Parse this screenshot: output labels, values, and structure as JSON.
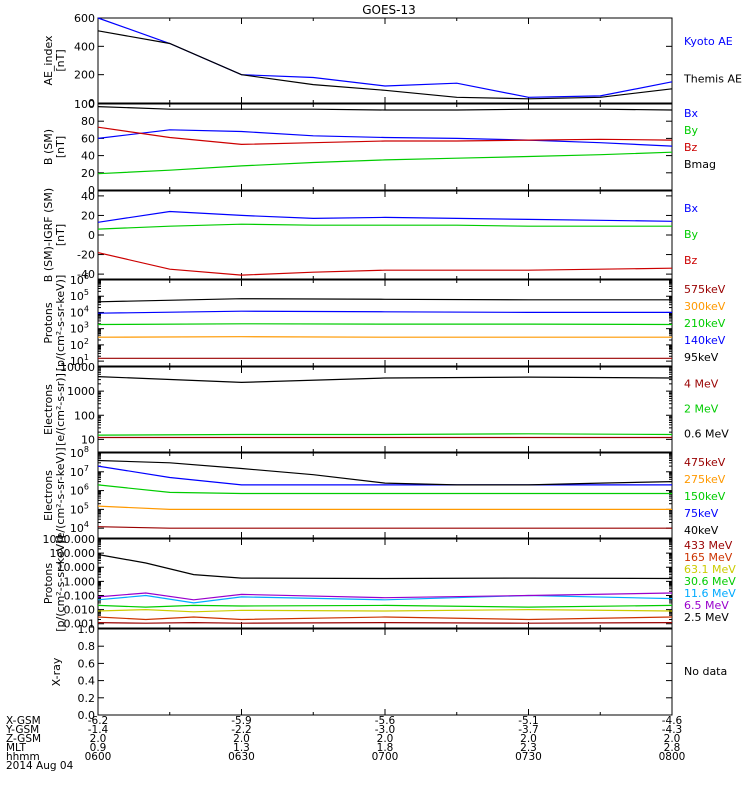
{
  "title": "GOES-13",
  "colors": {
    "black": "#000000",
    "blue": "#0000ff",
    "green": "#00cc00",
    "red": "#cc0000",
    "darkred": "#990000",
    "orange": "#ff9900",
    "cyan": "#00aaff",
    "yellow": "#cccc00",
    "purple": "#9900cc",
    "brown": "#cc3300"
  },
  "footer": {
    "rows": [
      {
        "label": "X-GSM",
        "values": [
          "-6.2",
          "-5.9",
          "-5.6",
          "-5.1",
          "-4.6"
        ]
      },
      {
        "label": "Y-GSM",
        "values": [
          "-1.4",
          "-2.2",
          "-3.0",
          "-3.7",
          "-4.3"
        ]
      },
      {
        "label": "Z-GSM",
        "values": [
          "2.0",
          "2.0",
          "2.0",
          "2.0",
          "2.0"
        ]
      },
      {
        "label": "MLT",
        "values": [
          "0.9",
          "1.3",
          "1.8",
          "2.3",
          "2.8"
        ]
      },
      {
        "label": "hhmm",
        "values": [
          "0600",
          "0630",
          "0700",
          "0730",
          "0800"
        ]
      }
    ],
    "date": "2014 Aug 04"
  },
  "chart_data": [
    {
      "type": "line",
      "id": "ae",
      "ylabel": [
        "AE_index",
        "[nT]"
      ],
      "ylim": [
        0,
        600
      ],
      "log": false,
      "ticks": [
        "0",
        "200",
        "400",
        "600"
      ],
      "legend": [
        {
          "name": "Kyoto AE",
          "color": "blue"
        },
        {
          "name": "Themis AE",
          "color": "black"
        }
      ],
      "x": [
        "0600",
        "0615",
        "0630",
        "0645",
        "0700",
        "0715",
        "0730",
        "0745",
        "0800"
      ],
      "series": [
        {
          "name": "Kyoto AE",
          "color": "blue",
          "values": [
            620,
            420,
            200,
            180,
            120,
            140,
            40,
            50,
            150
          ]
        },
        {
          "name": "Themis AE",
          "color": "black",
          "values": [
            510,
            420,
            200,
            130,
            90,
            40,
            30,
            40,
            100
          ]
        }
      ]
    },
    {
      "type": "line",
      "id": "bsm",
      "ylabel": [
        "B (SM)",
        "[nT]"
      ],
      "ylim": [
        0,
        100
      ],
      "log": false,
      "ticks": [
        "0",
        "20",
        "40",
        "60",
        "80",
        "100"
      ],
      "legend": [
        {
          "name": "Bx",
          "color": "blue"
        },
        {
          "name": "By",
          "color": "green"
        },
        {
          "name": "Bz",
          "color": "red"
        },
        {
          "name": "Bmag",
          "color": "black"
        }
      ],
      "x": [
        "0600",
        "0615",
        "0630",
        "0645",
        "0700",
        "0715",
        "0730",
        "0745",
        "0800"
      ],
      "series": [
        {
          "name": "Bx",
          "color": "blue",
          "values": [
            60,
            70,
            68,
            63,
            61,
            60,
            58,
            55,
            51
          ]
        },
        {
          "name": "By",
          "color": "green",
          "values": [
            19,
            23,
            28,
            32,
            35,
            37,
            39,
            41,
            44
          ]
        },
        {
          "name": "Bz",
          "color": "red",
          "values": [
            73,
            61,
            53,
            55,
            57,
            57,
            58,
            59,
            58
          ]
        },
        {
          "name": "Bmag",
          "color": "black",
          "values": [
            97,
            94,
            94,
            94,
            93,
            93,
            94,
            94,
            93
          ]
        }
      ]
    },
    {
      "type": "line",
      "id": "bigrf",
      "ylabel": [
        "B (SM)-IGRF (SM)",
        "[nT]"
      ],
      "ylim": [
        -45,
        45
      ],
      "log": false,
      "ticks": [
        "-40",
        "-20",
        "0",
        "20",
        "40"
      ],
      "legend": [
        {
          "name": "Bx",
          "color": "blue"
        },
        {
          "name": "By",
          "color": "green"
        },
        {
          "name": "Bz",
          "color": "red"
        }
      ],
      "x": [
        "0600",
        "0615",
        "0630",
        "0645",
        "0700",
        "0715",
        "0730",
        "0745",
        "0800"
      ],
      "series": [
        {
          "name": "Bx",
          "color": "blue",
          "values": [
            13,
            24,
            20,
            17,
            18,
            17,
            16,
            15,
            14
          ]
        },
        {
          "name": "By",
          "color": "green",
          "values": [
            6,
            9,
            11,
            10,
            10,
            10,
            9,
            9,
            9
          ]
        },
        {
          "name": "Bz",
          "color": "red",
          "values": [
            -18,
            -35,
            -41,
            -38,
            -36,
            -36,
            -36,
            -35,
            -34
          ]
        }
      ]
    },
    {
      "type": "line",
      "id": "protons",
      "ylabel": [
        "Protons",
        "[p/(cm²-s-sr-keV)]"
      ],
      "ylim": [
        5,
        1000000
      ],
      "log": true,
      "ticks": [
        {
          "t": "10",
          "v": 10,
          "e": "1"
        },
        {
          "t": "10",
          "v": 100,
          "e": "2"
        },
        {
          "t": "10",
          "v": 1000,
          "e": "3"
        },
        {
          "t": "10",
          "v": 10000,
          "e": "4"
        },
        {
          "t": "10",
          "v": 100000,
          "e": "5"
        },
        {
          "t": "10",
          "v": 1000000,
          "e": "6"
        }
      ],
      "legend": [
        {
          "name": "575keV",
          "color": "darkred"
        },
        {
          "name": "300keV",
          "color": "orange"
        },
        {
          "name": "210keV",
          "color": "green"
        },
        {
          "name": "140keV",
          "color": "blue"
        },
        {
          "name": "95keV",
          "color": "black"
        }
      ],
      "x": [
        "0600",
        "0630",
        "0700",
        "0730",
        "0800"
      ],
      "series": [
        {
          "name": "575keV",
          "color": "darkred",
          "values": [
            15,
            15,
            15,
            15,
            15
          ]
        },
        {
          "name": "300keV",
          "color": "orange",
          "values": [
            300,
            320,
            300,
            300,
            300
          ]
        },
        {
          "name": "210keV",
          "color": "green",
          "values": [
            1800,
            2000,
            1900,
            1900,
            1800
          ]
        },
        {
          "name": "140keV",
          "color": "blue",
          "values": [
            9000,
            12000,
            11000,
            10000,
            10000
          ]
        },
        {
          "name": "95keV",
          "color": "black",
          "values": [
            45000,
            70000,
            65000,
            60000,
            60000
          ]
        }
      ]
    },
    {
      "type": "line",
      "id": "electrons1",
      "ylabel": [
        "Electrons",
        "[e/(cm²-s-sr)]"
      ],
      "ylim": [
        3,
        10000
      ],
      "log": true,
      "ticks": [
        {
          "t": "10",
          "v": 10
        },
        {
          "t": "100",
          "v": 100
        },
        {
          "t": "1000",
          "v": 1000
        },
        {
          "t": "10000",
          "v": 10000
        }
      ],
      "legend": [
        {
          "name": "4 MeV",
          "color": "darkred"
        },
        {
          "name": "2 MeV",
          "color": "green"
        },
        {
          "name": "0.6 MeV",
          "color": "black"
        }
      ],
      "x": [
        "0600",
        "0630",
        "0700",
        "0730",
        "0800"
      ],
      "series": [
        {
          "name": "4 MeV",
          "color": "darkred",
          "values": [
            12,
            12,
            12,
            12,
            12
          ]
        },
        {
          "name": "2 MeV",
          "color": "green",
          "values": [
            15,
            16,
            16,
            17,
            16
          ]
        },
        {
          "name": "0.6 MeV",
          "color": "black",
          "values": [
            4000,
            2300,
            3500,
            3800,
            3500
          ]
        }
      ]
    },
    {
      "type": "line",
      "id": "electrons2",
      "ylabel": [
        "Electrons",
        "[e/(cm²-s-sr-keV)]"
      ],
      "ylim": [
        3000,
        100000000
      ],
      "log": true,
      "ticks": [
        {
          "t": "10",
          "v": 10000,
          "e": "4"
        },
        {
          "t": "10",
          "v": 100000,
          "e": "5"
        },
        {
          "t": "10",
          "v": 1000000,
          "e": "6"
        },
        {
          "t": "10",
          "v": 10000000,
          "e": "7"
        },
        {
          "t": "10",
          "v": 100000000,
          "e": "8"
        }
      ],
      "legend": [
        {
          "name": "475keV",
          "color": "darkred"
        },
        {
          "name": "275keV",
          "color": "orange"
        },
        {
          "name": "150keV",
          "color": "green"
        },
        {
          "name": "75keV",
          "color": "blue"
        },
        {
          "name": "40keV",
          "color": "black"
        }
      ],
      "x": [
        "0600",
        "0615",
        "0630",
        "0645",
        "0700",
        "0715",
        "0730",
        "0745",
        "0800"
      ],
      "series": [
        {
          "name": "475keV",
          "color": "darkred",
          "values": [
            12000,
            10000,
            10000,
            10000,
            10000,
            10000,
            10000,
            10000,
            10000
          ]
        },
        {
          "name": "275keV",
          "color": "orange",
          "values": [
            150000,
            100000,
            100000,
            100000,
            100000,
            100000,
            100000,
            100000,
            100000
          ]
        },
        {
          "name": "150keV",
          "color": "green",
          "values": [
            2000000,
            800000,
            700000,
            700000,
            700000,
            700000,
            700000,
            700000,
            700000
          ]
        },
        {
          "name": "75keV",
          "color": "blue",
          "values": [
            20000000,
            5000000,
            2000000,
            2000000,
            2000000,
            2000000,
            2000000,
            2000000,
            2000000
          ]
        },
        {
          "name": "40keV",
          "color": "black",
          "values": [
            40000000,
            30000000,
            15000000,
            7000000,
            2500000,
            2000000,
            2000000,
            2500000,
            3000000
          ]
        }
      ]
    },
    {
      "type": "line",
      "id": "protons2",
      "ylabel": [
        "Protons",
        "[p/(cm²-s-sr-keV)]"
      ],
      "ylim": [
        0.0005,
        1000
      ],
      "log": true,
      "ticks": [
        {
          "t": "0.001",
          "v": 0.001
        },
        {
          "t": "0.010",
          "v": 0.01
        },
        {
          "t": "0.100",
          "v": 0.1
        },
        {
          "t": "1.000",
          "v": 1
        },
        {
          "t": "10.000",
          "v": 10
        },
        {
          "t": "100.000",
          "v": 100
        },
        {
          "t": "1000.000",
          "v": 1000
        }
      ],
      "legend": [
        {
          "name": "433 MeV",
          "color": "darkred"
        },
        {
          "name": "165 MeV",
          "color": "brown"
        },
        {
          "name": "63.1 MeV",
          "color": "yellow"
        },
        {
          "name": "30.6 MeV",
          "color": "green"
        },
        {
          "name": "11.6 MeV",
          "color": "cyan"
        },
        {
          "name": "6.5 MeV",
          "color": "purple"
        },
        {
          "name": "2.5 MeV",
          "color": "black"
        }
      ],
      "x": [
        "0600",
        "0610",
        "0620",
        "0630",
        "0700",
        "0730",
        "0800"
      ],
      "series": [
        {
          "name": "433 MeV",
          "color": "darkred",
          "values": [
            0.0012,
            0.0011,
            0.0012,
            0.0011,
            0.0012,
            0.0011,
            0.0012
          ]
        },
        {
          "name": "165 MeV",
          "color": "brown",
          "values": [
            0.003,
            0.002,
            0.003,
            0.002,
            0.003,
            0.002,
            0.003
          ]
        },
        {
          "name": "63.1 MeV",
          "color": "yellow",
          "values": [
            0.008,
            0.01,
            0.007,
            0.009,
            0.008,
            0.01,
            0.008
          ]
        },
        {
          "name": "30.6 MeV",
          "color": "green",
          "values": [
            0.02,
            0.015,
            0.02,
            0.018,
            0.02,
            0.015,
            0.02
          ]
        },
        {
          "name": "11.6 MeV",
          "color": "cyan",
          "values": [
            0.05,
            0.1,
            0.03,
            0.08,
            0.05,
            0.1,
            0.06
          ]
        },
        {
          "name": "6.5 MeV",
          "color": "purple",
          "values": [
            0.08,
            0.15,
            0.05,
            0.12,
            0.07,
            0.1,
            0.15
          ]
        },
        {
          "name": "2.5 MeV",
          "color": "black",
          "values": [
            80,
            20,
            3,
            1.7,
            1.6,
            1.7,
            1.6
          ]
        }
      ]
    },
    {
      "type": "line",
      "id": "xray",
      "ylabel": [
        "X-ray"
      ],
      "ylim": [
        0,
        1
      ],
      "log": false,
      "ticks": [
        "0.0",
        "0.2",
        "0.4",
        "0.6",
        "0.8",
        "1.0"
      ],
      "legend": [
        {
          "name": "No data",
          "color": "black"
        }
      ],
      "x": [],
      "series": []
    }
  ]
}
